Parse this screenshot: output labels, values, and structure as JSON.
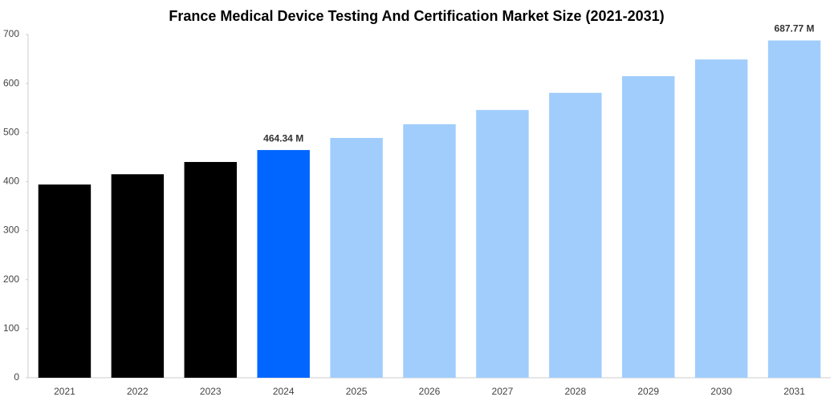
{
  "chart_data": {
    "type": "bar",
    "title": "France Medical Device Testing And Certification Market Size (2021-2031)",
    "categories": [
      "2021",
      "2022",
      "2023",
      "2024",
      "2025",
      "2026",
      "2027",
      "2028",
      "2029",
      "2030",
      "2031"
    ],
    "values": [
      394,
      415,
      440,
      464.34,
      489,
      517,
      546,
      581,
      615,
      649,
      687.77
    ],
    "value_labels": [
      null,
      null,
      null,
      "464.34 M",
      null,
      null,
      null,
      null,
      null,
      null,
      "687.77 M"
    ],
    "colors": [
      "#000000",
      "#000000",
      "#000000",
      "#0066ff",
      "#a0cdfc",
      "#a0cdfc",
      "#a0cdfc",
      "#a0cdfc",
      "#a0cdfc",
      "#a0cdfc",
      "#a0cdfc"
    ],
    "ylim": [
      0,
      700
    ],
    "yticks": [
      0,
      100,
      200,
      300,
      400,
      500,
      600,
      700
    ],
    "grid": false
  }
}
